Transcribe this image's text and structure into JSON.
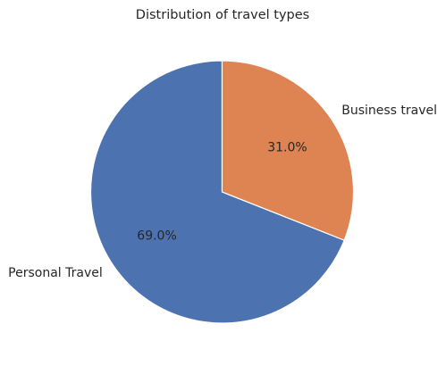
{
  "chart_data": {
    "type": "pie",
    "title": "Distribution of travel types",
    "slices": [
      {
        "label": "Personal Travel",
        "value": 69.0,
        "pct_label": "69.0%",
        "color": "#4c72b0"
      },
      {
        "label": "Business travel",
        "value": 31.0,
        "pct_label": "31.0%",
        "color": "#dd8452"
      }
    ],
    "start_angle_deg": 90,
    "direction": "counterclockwise",
    "slice_edge_color": "#ffffff"
  }
}
